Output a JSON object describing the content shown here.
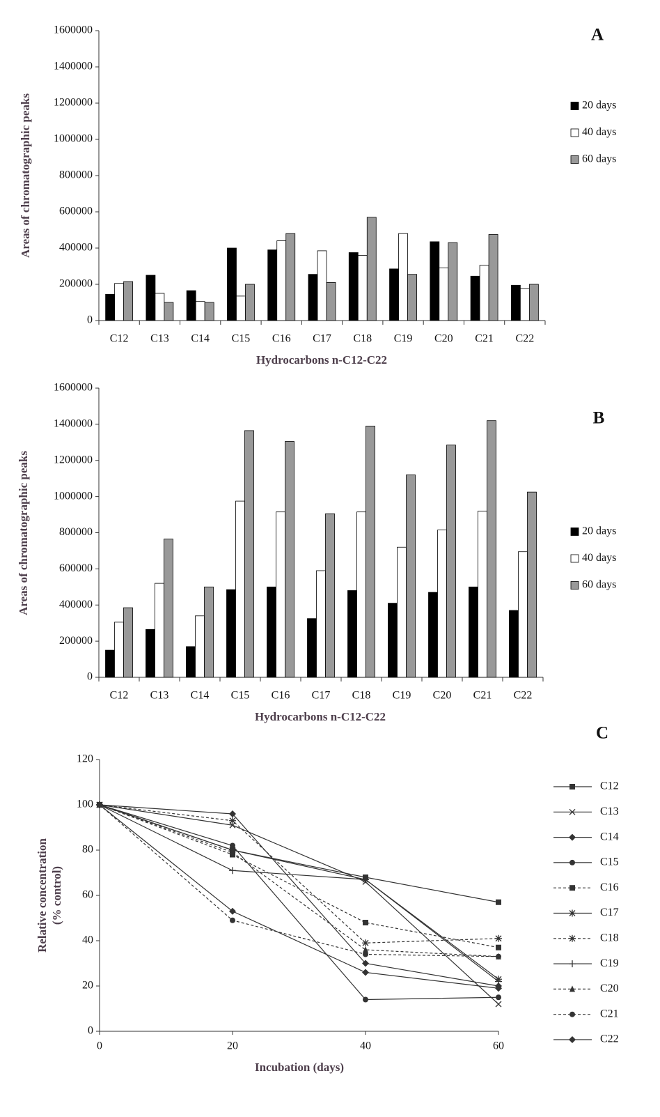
{
  "chart_data": [
    {
      "type": "bar",
      "panel_label": "A",
      "xlabel": "Hydrocarbons n-C12-C22",
      "ylabel": "Areas of chromatographic peaks",
      "categories": [
        "C12",
        "C13",
        "C14",
        "C15",
        "C16",
        "C17",
        "C18",
        "C19",
        "C20",
        "C21",
        "C22"
      ],
      "series": [
        {
          "name": "20 days",
          "color": "#000000",
          "values": [
            145000,
            250000,
            165000,
            400000,
            390000,
            255000,
            375000,
            285000,
            435000,
            245000,
            195000
          ]
        },
        {
          "name": "40 days",
          "color": "#ffffff",
          "values": [
            205000,
            150000,
            105000,
            135000,
            440000,
            385000,
            360000,
            480000,
            290000,
            305000,
            175000
          ]
        },
        {
          "name": "60 days",
          "color": "#999999",
          "values": [
            215000,
            100000,
            100000,
            200000,
            480000,
            210000,
            570000,
            255000,
            430000,
            475000,
            200000
          ]
        }
      ],
      "ylim": [
        0,
        1600000
      ],
      "yticks": [
        0,
        200000,
        400000,
        600000,
        800000,
        1000000,
        1200000,
        1400000,
        1600000
      ]
    },
    {
      "type": "bar",
      "panel_label": "B",
      "xlabel": "Hydrocarbons n-C12-C22",
      "ylabel": "Areas of chromatographic peaks",
      "categories": [
        "C12",
        "C13",
        "C14",
        "C15",
        "C16",
        "C17",
        "C18",
        "C19",
        "C20",
        "C21",
        "C22"
      ],
      "series": [
        {
          "name": "20 days",
          "color": "#000000",
          "values": [
            150000,
            265000,
            170000,
            485000,
            500000,
            325000,
            480000,
            410000,
            470000,
            500000,
            370000
          ]
        },
        {
          "name": "40 days",
          "color": "#ffffff",
          "values": [
            305000,
            520000,
            340000,
            975000,
            915000,
            590000,
            915000,
            720000,
            815000,
            920000,
            695000
          ]
        },
        {
          "name": "60 days",
          "color": "#999999",
          "values": [
            385000,
            765000,
            500000,
            1365000,
            1305000,
            905000,
            1390000,
            1120000,
            1285000,
            1420000,
            1025000
          ]
        }
      ],
      "ylim": [
        0,
        1600000
      ],
      "yticks": [
        0,
        200000,
        400000,
        600000,
        800000,
        1000000,
        1200000,
        1400000,
        1600000
      ]
    },
    {
      "type": "line",
      "panel_label": "C",
      "xlabel": "Incubation (days)",
      "ylabel": [
        "Relative concentration",
        "(% control)"
      ],
      "x": [
        0,
        20,
        40,
        60
      ],
      "series": [
        {
          "name": "C12",
          "color": "#333333",
          "marker": "square",
          "dashed": false,
          "values": [
            100,
            80,
            68,
            57
          ]
        },
        {
          "name": "C13",
          "color": "#333333",
          "marker": "x",
          "dashed": false,
          "values": [
            100,
            91,
            66,
            12
          ]
        },
        {
          "name": "C14",
          "color": "#333333",
          "marker": "diamond",
          "dashed": false,
          "values": [
            100,
            96,
            30,
            20
          ]
        },
        {
          "name": "C15",
          "color": "#333333",
          "marker": "circle",
          "dashed": false,
          "values": [
            100,
            82,
            14,
            15
          ]
        },
        {
          "name": "C16",
          "color": "#333333",
          "marker": "square",
          "dashed": true,
          "values": [
            100,
            78,
            48,
            37
          ]
        },
        {
          "name": "C17",
          "color": "#333333",
          "marker": "asterisk",
          "dashed": false,
          "values": [
            100,
            80,
            67,
            23
          ]
        },
        {
          "name": "C18",
          "color": "#333333",
          "marker": "asterisk",
          "dashed": true,
          "values": [
            100,
            93,
            39,
            41
          ]
        },
        {
          "name": "C19",
          "color": "#333333",
          "marker": "plus",
          "dashed": false,
          "values": [
            100,
            71,
            67,
            22
          ]
        },
        {
          "name": "C20",
          "color": "#333333",
          "marker": "triangle",
          "dashed": true,
          "values": [
            100,
            79,
            36,
            33
          ]
        },
        {
          "name": "C21",
          "color": "#333333",
          "marker": "circle",
          "dashed": true,
          "values": [
            100,
            49,
            34,
            33
          ]
        },
        {
          "name": "C22",
          "color": "#333333",
          "marker": "diamond",
          "dashed": false,
          "values": [
            100,
            53,
            26,
            19
          ]
        }
      ],
      "xlim": [
        0,
        60
      ],
      "xticks": [
        0,
        20,
        40,
        60
      ],
      "ylim": [
        0,
        120
      ],
      "yticks": [
        0,
        20,
        40,
        60,
        80,
        100,
        120
      ]
    }
  ]
}
